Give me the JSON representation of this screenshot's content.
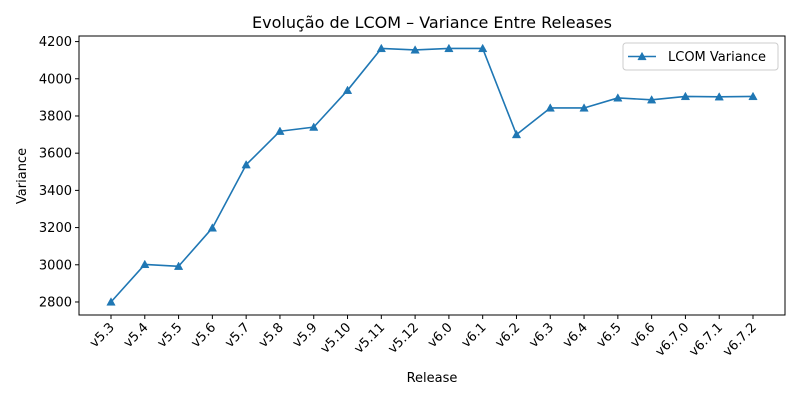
{
  "chart_data": {
    "type": "line",
    "title": "Evolução de LCOM – Variance Entre Releases",
    "xlabel": "Release",
    "ylabel": "Variance",
    "categories": [
      "v5.3",
      "v5.4",
      "v5.5",
      "v5.6",
      "v5.7",
      "v5.8",
      "v5.9",
      "v5.10",
      "v5.11",
      "v5.12",
      "v6.0",
      "v6.1",
      "v6.2",
      "v6.3",
      "v6.4",
      "v6.5",
      "v6.6",
      "v6.7.0",
      "v6.7.1",
      "v6.7.2"
    ],
    "series": [
      {
        "name": "LCOM Variance",
        "color": "#1f77b4",
        "marker": "triangle-up",
        "values": [
          2800,
          3002,
          2992,
          3198,
          3538,
          3718,
          3740,
          3938,
          4163,
          4155,
          4163,
          4163,
          3700,
          3843,
          3843,
          3897,
          3887,
          3905,
          3903,
          3905
        ]
      }
    ],
    "ylim": [
      2730,
      4230
    ],
    "yticks": [
      2800,
      3000,
      3200,
      3400,
      3600,
      3800,
      4000,
      4200
    ],
    "grid": false,
    "legend_position": "top-right"
  }
}
